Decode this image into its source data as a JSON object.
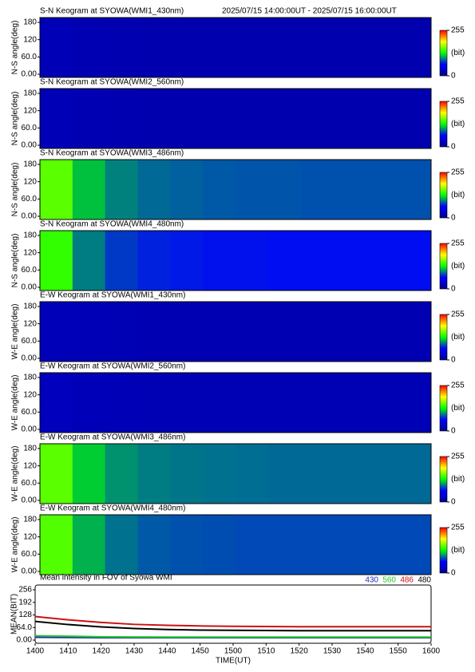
{
  "chart_data": [
    {
      "type": "heatmap",
      "title": "S-N Keogram at SYOWA(WMI1_430nm)",
      "subtitle": "2025/07/15 14:00:00UT - 2025/07/15 16:00:00UT",
      "y_label": "N-S angle(deg)",
      "xlim": [
        0,
        120
      ],
      "x": [
        0,
        10,
        20,
        30,
        40,
        50,
        60,
        70,
        80,
        90,
        100,
        110
      ],
      "values": [
        22,
        20,
        19,
        18,
        18,
        18,
        18,
        18,
        18,
        18,
        18,
        18
      ],
      "ylim": [
        0,
        180
      ],
      "yticks": [
        {
          "value": 0,
          "label": "0.00"
        },
        {
          "value": 60,
          "label": "60.0"
        },
        120,
        180
      ],
      "clim": [
        0,
        255
      ],
      "cticks": [
        0,
        255
      ],
      "clabel": "(bit)"
    },
    {
      "type": "heatmap",
      "title": "S-N Keogram at SYOWA(WMI2_560nm)",
      "y_label": "N-S angle(deg)",
      "xlim": [
        0,
        120
      ],
      "x": [
        0,
        10,
        20,
        30,
        40,
        50,
        60,
        70,
        80,
        90,
        100,
        110
      ],
      "values": [
        22,
        20,
        19,
        18,
        18,
        18,
        18,
        18,
        18,
        18,
        18,
        18
      ],
      "ylim": [
        0,
        180
      ],
      "yticks": [
        {
          "value": 0,
          "label": "0.00"
        },
        {
          "value": 60,
          "label": "60.0"
        },
        120,
        180
      ],
      "clim": [
        0,
        255
      ],
      "cticks": [
        0,
        255
      ],
      "clabel": "(bit)"
    },
    {
      "type": "heatmap",
      "title": "S-N Keogram at SYOWA(WMI3_486nm)",
      "y_label": "N-S angle(deg)",
      "xlim": [
        0,
        120
      ],
      "x": [
        0,
        10,
        20,
        30,
        40,
        50,
        60,
        70,
        80,
        90,
        100,
        110
      ],
      "values": [
        150,
        112,
        96,
        90,
        88,
        86,
        85,
        85,
        84,
        84,
        84,
        84
      ],
      "ylim": [
        0,
        180
      ],
      "yticks": [
        {
          "value": 0,
          "label": "0.00"
        },
        {
          "value": 60,
          "label": "60.0"
        },
        120,
        180
      ],
      "clim": [
        0,
        255
      ],
      "cticks": [
        0,
        255
      ],
      "clabel": "(bit)"
    },
    {
      "type": "heatmap",
      "title": "S-N Keogram at SYOWA(WMI4_480nm)",
      "y_label": "N-S angle(deg)",
      "xlim": [
        0,
        120
      ],
      "x": [
        0,
        10,
        20,
        30,
        40,
        50,
        60,
        70,
        80,
        90,
        100,
        110
      ],
      "values": [
        140,
        95,
        78,
        72,
        70,
        68,
        68,
        67,
        67,
        67,
        67,
        67
      ],
      "ylim": [
        0,
        180
      ],
      "yticks": [
        {
          "value": 0,
          "label": "0.00"
        },
        {
          "value": 60,
          "label": "60.0"
        },
        120,
        180
      ],
      "clim": [
        0,
        255
      ],
      "cticks": [
        0,
        255
      ],
      "clabel": "(bit)"
    },
    {
      "type": "heatmap",
      "title": "E-W Keogram at SYOWA(WMI1_430nm)",
      "y_label": "W-E angle(deg)",
      "xlim": [
        0,
        120
      ],
      "x": [
        0,
        10,
        20,
        30,
        40,
        50,
        60,
        70,
        80,
        90,
        100,
        110
      ],
      "values": [
        24,
        22,
        21,
        20,
        20,
        20,
        20,
        20,
        20,
        20,
        20,
        20
      ],
      "ylim": [
        0,
        180
      ],
      "yticks": [
        {
          "value": 0,
          "label": "0.00"
        },
        {
          "value": 60,
          "label": "60.0"
        },
        120,
        180
      ],
      "clim": [
        0,
        255
      ],
      "cticks": [
        0,
        255
      ],
      "clabel": "(bit)"
    },
    {
      "type": "heatmap",
      "title": "E-W Keogram at SYOWA(WMI2_560nm)",
      "y_label": "W-E angle(deg)",
      "xlim": [
        0,
        120
      ],
      "x": [
        0,
        10,
        20,
        30,
        40,
        50,
        60,
        70,
        80,
        90,
        100,
        110
      ],
      "values": [
        26,
        24,
        22,
        21,
        21,
        21,
        21,
        21,
        21,
        21,
        21,
        21
      ],
      "ylim": [
        0,
        180
      ],
      "yticks": [
        {
          "value": 0,
          "label": "0.00"
        },
        {
          "value": 60,
          "label": "60.0"
        },
        120,
        180
      ],
      "clim": [
        0,
        255
      ],
      "cticks": [
        0,
        255
      ],
      "clabel": "(bit)"
    },
    {
      "type": "heatmap",
      "title": "E-W Keogram at SYOWA(WMI3_486nm)",
      "y_label": "W-E angle(deg)",
      "xlim": [
        0,
        120
      ],
      "x": [
        0,
        10,
        20,
        30,
        40,
        50,
        60,
        70,
        80,
        90,
        100,
        110
      ],
      "values": [
        150,
        115,
        100,
        95,
        93,
        92,
        91,
        90,
        90,
        90,
        90,
        90
      ],
      "ylim": [
        0,
        180
      ],
      "yticks": [
        {
          "value": 0,
          "label": "0.00"
        },
        {
          "value": 60,
          "label": "60.0"
        },
        120,
        180
      ],
      "clim": [
        0,
        255
      ],
      "cticks": [
        0,
        255
      ],
      "clabel": "(bit)"
    },
    {
      "type": "heatmap",
      "title": "E-W Keogram at SYOWA(WMI4_480nm)",
      "y_label": "W-E angle(deg)",
      "xlim": [
        0,
        120
      ],
      "x": [
        0,
        10,
        20,
        30,
        40,
        50,
        60,
        70,
        80,
        90,
        100,
        110
      ],
      "values": [
        148,
        108,
        92,
        86,
        84,
        83,
        82,
        82,
        82,
        82,
        82,
        82
      ],
      "ylim": [
        0,
        180
      ],
      "yticks": [
        {
          "value": 0,
          "label": "0.00"
        },
        {
          "value": 60,
          "label": "60.0"
        },
        120,
        180
      ],
      "clim": [
        0,
        255
      ],
      "cticks": [
        0,
        255
      ],
      "clabel": "(bit)"
    },
    {
      "type": "line",
      "title": "Mean intensity in FOV of Syowa WMI",
      "y_label": "MEAN(BIT)",
      "x_label": "TIME(UT)",
      "x": [
        0,
        10,
        20,
        30,
        40,
        50,
        60,
        70,
        80,
        90,
        100,
        110,
        120
      ],
      "series": [
        {
          "name": "430",
          "color": "#1f2fb8",
          "values": [
            14,
            13,
            12,
            12,
            12,
            12,
            12,
            12,
            12,
            12,
            12,
            12,
            12
          ]
        },
        {
          "name": "560",
          "color": "#22cc22",
          "values": [
            22,
            20,
            17,
            16,
            15,
            15,
            15,
            15,
            15,
            15,
            15,
            15,
            15
          ]
        },
        {
          "name": "486",
          "color": "#cc1111",
          "values": [
            120,
            103,
            90,
            80,
            75,
            72,
            70,
            69,
            68,
            68,
            68,
            68,
            68
          ]
        },
        {
          "name": "480",
          "color": "#000000",
          "values": [
            95,
            79,
            67,
            59,
            54,
            51,
            50,
            49,
            48,
            48,
            48,
            48,
            48
          ]
        }
      ],
      "xlim": [
        0,
        120
      ],
      "xticks": [
        {
          "value": 0,
          "label": "1400"
        },
        {
          "value": 10,
          "label": "1410"
        },
        {
          "value": 20,
          "label": "1420"
        },
        {
          "value": 30,
          "label": "1430"
        },
        {
          "value": 40,
          "label": "1440"
        },
        {
          "value": 50,
          "label": "1450"
        },
        {
          "value": 60,
          "label": "1500"
        },
        {
          "value": 70,
          "label": "1510"
        },
        {
          "value": 80,
          "label": "1520"
        },
        {
          "value": 90,
          "label": "1530"
        },
        {
          "value": 100,
          "label": "1540"
        },
        {
          "value": 110,
          "label": "1550"
        },
        {
          "value": 120,
          "label": "1600"
        }
      ],
      "ylim": [
        0,
        256
      ],
      "yticks": [
        {
          "value": 0,
          "label": "0.00"
        },
        {
          "value": 64,
          "label": "64.0"
        },
        128,
        192,
        256
      ]
    }
  ]
}
